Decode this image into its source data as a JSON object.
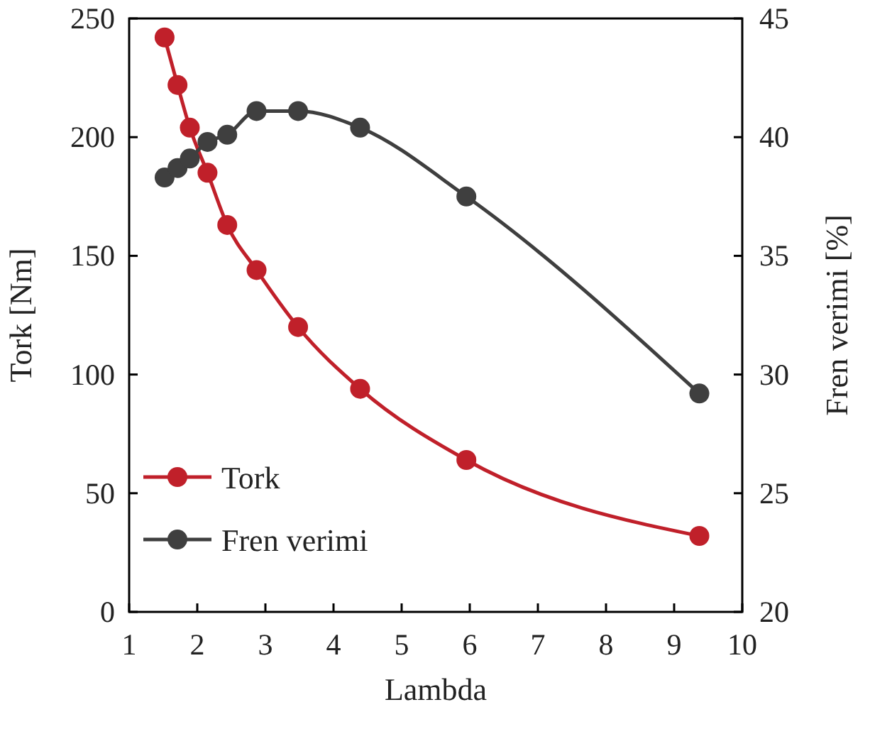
{
  "chart_data": {
    "type": "line",
    "xlabel": "Lambda",
    "ylabel": "Tork [Nm]",
    "y2label": "Fren verimi [%]",
    "x": [
      1.52,
      1.71,
      1.89,
      2.15,
      2.44,
      2.87,
      3.48,
      4.39,
      5.95,
      9.37
    ],
    "series": [
      {
        "name": "Tork",
        "color": "#c0202a",
        "values": [
          242,
          222,
          204,
          185,
          163,
          144,
          120,
          94,
          64,
          32
        ]
      },
      {
        "name": "Fren verimi",
        "color": "#3f3f3f",
        "axis": "y2",
        "values": [
          38.3,
          38.7,
          39.1,
          39.8,
          40.1,
          41.1,
          41.1,
          40.4,
          37.5,
          29.2
        ]
      }
    ],
    "xlim": [
      1,
      10
    ],
    "xticks": [
      1,
      2,
      3,
      4,
      5,
      6,
      7,
      8,
      9,
      10
    ],
    "ylim": [
      0,
      250
    ],
    "yticks": [
      0,
      50,
      100,
      150,
      200,
      250
    ],
    "y2lim": [
      20,
      45
    ],
    "y2ticks": [
      20,
      25,
      30,
      35,
      40,
      45
    ],
    "grid": false,
    "legend": "bottom left",
    "marker": "circle",
    "line_style": "solid"
  }
}
